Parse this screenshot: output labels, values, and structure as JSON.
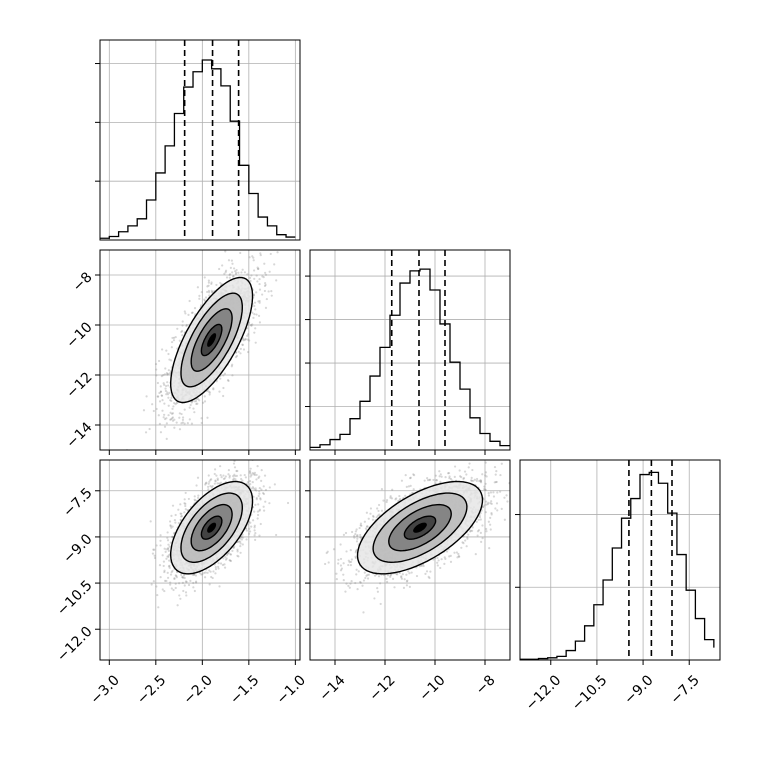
{
  "chart_data": {
    "type": "corner",
    "title": "",
    "grid": true,
    "colors": {
      "line": "#000000",
      "grid": "#b0b0b0",
      "scatter": "#8c8c8c",
      "frame": "#000000"
    },
    "parameters": [
      {
        "xlim": [
          -3.1,
          -0.95
        ],
        "mean": -1.9,
        "sigma": 0.22,
        "quantiles": [
          -2.19,
          -1.89,
          -1.61
        ]
      },
      {
        "xlim": [
          -15.0,
          -7.0
        ],
        "mean": -10.6,
        "sigma": 1.25,
        "quantiles": [
          -11.73,
          -10.64,
          -9.6
        ]
      },
      {
        "xlim": [
          -13.0,
          -6.5
        ],
        "mean": -8.7,
        "sigma": 0.75,
        "quantiles": [
          -9.46,
          -8.73,
          -8.06
        ]
      }
    ],
    "correlations": {
      "1_0": 0.7,
      "2_0": 0.58,
      "2_1": 0.6
    },
    "diagonal_histograms": [
      {
        "param": 0,
        "bin_edges": [
          -3.1,
          -3.0,
          -2.9,
          -2.8,
          -2.7,
          -2.6,
          -2.5,
          -2.4,
          -2.3,
          -2.2,
          -2.1,
          -2.0,
          -1.9,
          -1.8,
          -1.7,
          -1.6,
          -1.5,
          -1.4,
          -1.3,
          -1.2,
          -1.1,
          -1.0
        ],
        "counts": [
          3,
          6,
          14,
          24,
          36,
          68,
          114,
          160,
          215,
          260,
          286,
          306,
          291,
          262,
          202,
          127,
          79,
          39,
          24,
          9,
          5
        ]
      },
      {
        "param": 1,
        "bin_edges": [
          -15.0,
          -14.6,
          -14.2,
          -13.8,
          -13.4,
          -13.0,
          -12.6,
          -12.2,
          -11.8,
          -11.4,
          -11.0,
          -10.6,
          -10.2,
          -9.8,
          -9.4,
          -9.0,
          -8.6,
          -8.2,
          -7.8,
          -7.4,
          -7.0
        ],
        "counts": [
          3,
          6,
          12,
          18,
          36,
          56,
          85,
          118,
          155,
          192,
          206,
          208,
          184,
          145,
          101,
          70,
          37,
          19,
          10,
          5
        ]
      },
      {
        "param": 2,
        "bin_edges": [
          -13.0,
          -12.7,
          -12.4,
          -12.1,
          -11.8,
          -11.5,
          -11.2,
          -10.9,
          -10.6,
          -10.3,
          -10.0,
          -9.7,
          -9.4,
          -9.1,
          -8.8,
          -8.5,
          -8.2,
          -7.9,
          -7.6,
          -7.3,
          -7.0,
          -6.7
        ],
        "counts": [
          1,
          1,
          2,
          3,
          5,
          13,
          26,
          47,
          76,
          110,
          154,
          195,
          222,
          255,
          258,
          243,
          202,
          145,
          96,
          57,
          28,
          17
        ]
      }
    ],
    "panels": [
      {
        "row": 0,
        "col": 0,
        "kind": "hist",
        "xticks": [],
        "yticks": [],
        "y_grid_counts": [
          100,
          200,
          300
        ],
        "ymax": 340
      },
      {
        "row": 1,
        "col": 0,
        "kind": "2d",
        "xticks": [],
        "yticks": [
          -8,
          -10,
          -12,
          -14
        ],
        "ytick_labels": [
          "−8",
          "−10",
          "−12",
          "−14"
        ],
        "xlim": [
          -3.1,
          -0.95
        ],
        "ylim": [
          -15.0,
          -7.0
        ]
      },
      {
        "row": 1,
        "col": 1,
        "kind": "hist",
        "xticks": [
          -14,
          -12,
          -10,
          -8
        ],
        "yticks": [],
        "y_grid_counts": [
          50,
          100,
          150,
          200
        ],
        "ymax": 230
      },
      {
        "row": 2,
        "col": 0,
        "kind": "2d",
        "xticks": [
          -3.0,
          -2.5,
          -2.0,
          -1.5,
          -1.0
        ],
        "xtick_labels": [
          "−3.0",
          "−2.5",
          "−2.0",
          "−1.5",
          "−1.0"
        ],
        "yticks": [
          -7.5,
          -9.0,
          -10.5,
          -12.0
        ],
        "ytick_labels": [
          "−7.5",
          "−9.0",
          "−10.5",
          "−12.0"
        ],
        "xlim": [
          -3.1,
          -0.95
        ],
        "ylim": [
          -13.0,
          -6.5
        ]
      },
      {
        "row": 2,
        "col": 1,
        "kind": "2d",
        "xticks": [
          -14,
          -12,
          -10,
          -8
        ],
        "xtick_labels": [
          "−14",
          "−12",
          "−10",
          "−8"
        ],
        "yticks": [
          -7.5,
          -9.0,
          -10.5,
          -12.0
        ],
        "ytick_labels": [],
        "xlim": [
          -15.0,
          -7.0
        ],
        "ylim": [
          -13.0,
          -6.5
        ]
      },
      {
        "row": 2,
        "col": 2,
        "kind": "hist",
        "xticks": [
          -12.0,
          -10.5,
          -9.0,
          -7.5
        ],
        "xtick_labels": [
          "−12.0",
          "−10.5",
          "−9.0",
          "−7.5"
        ],
        "yticks": [],
        "y_grid_counts": [
          100,
          200
        ],
        "ymax": 275
      }
    ],
    "contour_levels_sigma": [
      0.5,
      1.0,
      1.5,
      2.0
    ],
    "xlabels": [
      "",
      "",
      ""
    ],
    "ylabels": [
      "",
      "",
      ""
    ]
  }
}
